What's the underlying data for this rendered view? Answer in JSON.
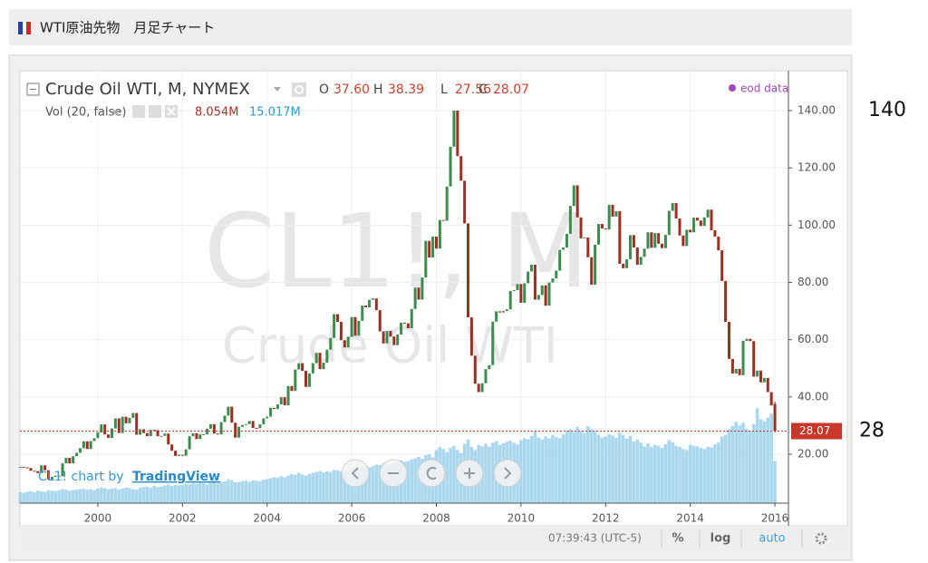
{
  "header": {
    "title": "WTI原油先物　月足チャート"
  },
  "chart_data": {
    "type": "candlestick",
    "title": "Crude Oil WTI, M, NYMEX",
    "watermark": "CL1!, M",
    "watermark_sub": "Crude Oil WTI",
    "source": "eod data",
    "credit": "CL1! chart by",
    "credit_link": "TradingView",
    "up_color": "#3d8b4f",
    "down_color": "#9a2f22",
    "closes": [
      15.6,
      15.4,
      15.2,
      14.2,
      14.1,
      13.4,
      16.1,
      14.4,
      11.2,
      12.1,
      12.5,
      12.3,
      16.8,
      18.7,
      16.8,
      19.3,
      20.5,
      22.1,
      24.5,
      21.8,
      24.6,
      25.6,
      27.6,
      30.4,
      26.9,
      25.7,
      29.0,
      32.5,
      27.4,
      33.1,
      30.8,
      32.7,
      34.4,
      26.8,
      28.7,
      27.4,
      26.3,
      28.5,
      28.4,
      26.3,
      26.4,
      27.2,
      23.4,
      21.2,
      19.4,
      19.8,
      19.5,
      21.7,
      26.3,
      27.3,
      25.3,
      26.9,
      27.0,
      28.9,
      30.5,
      27.2,
      26.9,
      31.2,
      33.5,
      36.6,
      31.0,
      25.8,
      29.6,
      30.2,
      30.5,
      31.6,
      29.2,
      29.1,
      30.4,
      32.5,
      33.1,
      36.2,
      35.8,
      37.4,
      39.9,
      37.1,
      43.8,
      42.1,
      49.6,
      51.8,
      49.1,
      43.5,
      48.2,
      51.8,
      55.4,
      49.7,
      51.97,
      56.5,
      60.6,
      68.9,
      66.2,
      59.8,
      57.3,
      61.0,
      67.9,
      61.4,
      66.6,
      71.9,
      71.3,
      73.9,
      74.4,
      70.3,
      62.9,
      58.7,
      63.1,
      61.1,
      58.1,
      61.8,
      65.9,
      65.7,
      64.0,
      70.7,
      78.2,
      74.0,
      81.7,
      94.5,
      88.7,
      95.98,
      91.8,
      101.8,
      101.6,
      113.5,
      127.4,
      140.0,
      124.1,
      115.5,
      100.6,
      67.8,
      54.4,
      44.6,
      41.7,
      44.8,
      49.7,
      51.1,
      66.3,
      69.9,
      69.5,
      70.0,
      70.6,
      77.0,
      77.3,
      79.4,
      72.9,
      79.7,
      83.8,
      86.2,
      73.97,
      75.6,
      78.95,
      71.9,
      79.97,
      81.4,
      84.1,
      91.4,
      92.2,
      96.97,
      106.7,
      113.9,
      102.7,
      95.4,
      95.7,
      88.8,
      79.2,
      93.2,
      100.4,
      98.8,
      98.5,
      107.1,
      103.0,
      104.9,
      86.5,
      84.96,
      88.1,
      96.5,
      92.2,
      86.2,
      88.9,
      91.8,
      97.5,
      92.1,
      97.2,
      93.5,
      91.97,
      96.6,
      105.0,
      107.7,
      102.3,
      96.4,
      92.7,
      98.4,
      97.5,
      102.6,
      101.6,
      99.7,
      102.7,
      105.4,
      98.2,
      96.0,
      91.2,
      80.5,
      66.2,
      53.3,
      48.2,
      49.8,
      47.6,
      59.6,
      60.3,
      59.5,
      47.1,
      49.2,
      45.1,
      46.6,
      41.7,
      37.04
    ],
    "last": {
      "open": {
        "name": "O",
        "value": 37.6,
        "label": "37.60"
      },
      "high": {
        "name": "H",
        "value": 38.39,
        "label": "38.39"
      },
      "low": {
        "name": "L",
        "value": 27.56,
        "label": "27.56"
      },
      "close": {
        "name": "C",
        "value": 28.07,
        "label": "28.07"
      }
    },
    "volume": {
      "name": "Vol (20, false)",
      "color": "#8fcbe8",
      "ylim": [
        0,
        20
      ],
      "values": [
        2.1,
        2.0,
        2.2,
        2.3,
        2.1,
        2.4,
        2.3,
        2.2,
        2.5,
        2.4,
        2.3,
        2.5,
        2.7,
        2.6,
        2.4,
        2.5,
        2.6,
        2.7,
        2.8,
        2.6,
        2.7,
        2.5,
        2.8,
        3.0,
        2.9,
        2.7,
        2.8,
        2.9,
        2.6,
        2.8,
        3.0,
        2.9,
        2.7,
        2.6,
        3.0,
        3.1,
        3.2,
        3.0,
        3.3,
        3.1,
        3.2,
        3.4,
        3.6,
        3.3,
        3.5,
        3.4,
        3.5,
        3.7,
        3.6,
        3.8,
        3.7,
        3.9,
        3.8,
        3.6,
        3.9,
        4.0,
        3.8,
        4.1,
        4.2,
        4.6,
        4.4,
        4.0,
        4.1,
        4.2,
        4.3,
        4.1,
        4.4,
        4.3,
        4.2,
        4.5,
        4.6,
        4.8,
        5.0,
        4.9,
        5.2,
        5.0,
        5.3,
        5.6,
        5.4,
        5.8,
        5.5,
        5.3,
        5.6,
        5.8,
        6.0,
        6.2,
        5.9,
        6.1,
        6.0,
        6.4,
        6.3,
        6.1,
        6.0,
        6.2,
        6.5,
        6.8,
        6.6,
        7.0,
        7.2,
        6.9,
        7.1,
        7.4,
        7.3,
        7.6,
        7.4,
        7.2,
        7.8,
        8.0,
        8.2,
        7.9,
        8.1,
        8.4,
        8.6,
        8.9,
        8.5,
        9.2,
        9.4,
        8.8,
        10.2,
        10.8,
        10.4,
        9.8,
        10.6,
        11.0,
        10.2,
        9.6,
        11.4,
        12.2,
        10.8,
        10.2,
        11.2,
        10.9,
        11.4,
        10.8,
        11.6,
        11.9,
        11.2,
        11.5,
        11.8,
        12.0,
        11.6,
        11.3,
        12.1,
        12.5,
        12.3,
        12.9,
        13.8,
        12.6,
        12.2,
        12.8,
        12.4,
        13.1,
        12.7,
        12.5,
        13.2,
        13.8,
        14.2,
        13.6,
        14.6,
        13.9,
        13.4,
        14.8,
        14.2,
        13.8,
        13.1,
        12.6,
        12.8,
        13.2,
        13.0,
        12.5,
        13.6,
        13.1,
        12.4,
        12.9,
        11.8,
        12.2,
        11.6,
        10.9,
        11.5,
        10.8,
        11.2,
        11.0,
        10.6,
        11.3,
        12.1,
        11.7,
        11.0,
        10.8,
        10.4,
        10.2,
        11.2,
        11.0,
        10.9,
        10.6,
        10.4,
        10.8,
        10.7,
        11.3,
        11.6,
        12.8,
        13.1,
        14.2,
        14.8,
        15.6,
        14.9,
        15.4,
        14.2,
        13.8,
        15.2,
        18.2,
        16.1,
        15.7,
        16.4,
        17.2,
        8.054
      ],
      "readout": {
        "value": 8.054,
        "label": "8.054M"
      },
      "ma_readout": {
        "value": 15.017,
        "label": "15.017M"
      }
    },
    "ylim": [
      2.9,
      153.3
    ],
    "yticks": [
      {
        "value": 20,
        "label": "20.00"
      },
      {
        "value": 40,
        "label": "40.00"
      },
      {
        "value": 60,
        "label": "60.00"
      },
      {
        "value": 80,
        "label": "80.00"
      },
      {
        "value": 100,
        "label": "100.00"
      },
      {
        "value": 120,
        "label": "120.00"
      },
      {
        "value": 140,
        "label": "140.00"
      }
    ],
    "xlim": [
      1998.16,
      2016.32
    ],
    "xticks": [
      2000,
      2002,
      2004,
      2006,
      2008,
      2010,
      2012,
      2014,
      2016
    ],
    "grid": true,
    "toolbar": {
      "time": "07:39:43 (UTC-5)",
      "percent": "%",
      "log": "log",
      "auto": "auto"
    },
    "annotations": [
      140,
      28
    ]
  }
}
